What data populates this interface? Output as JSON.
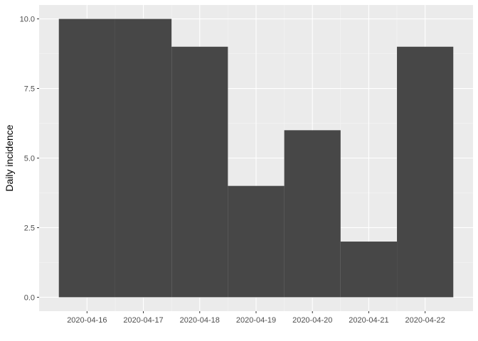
{
  "chart_data": {
    "type": "bar",
    "title": "",
    "xlabel": "",
    "ylabel": "Daily incidence",
    "categories": [
      "2020-04-16",
      "2020-04-17",
      "2020-04-18",
      "2020-04-19",
      "2020-04-20",
      "2020-04-21",
      "2020-04-22"
    ],
    "values": [
      10,
      10,
      9,
      4,
      6,
      2,
      9
    ],
    "ylim": [
      -0.5,
      10.5
    ],
    "yticks": [
      0.0,
      2.5,
      5.0,
      7.5,
      10.0
    ],
    "ytick_labels": [
      "0.0",
      "2.5",
      "5.0",
      "7.5",
      "10.0"
    ],
    "grid": true,
    "legend": "none",
    "bar_color": "#474747",
    "panel_color": "#ebebeb",
    "grid_major_color": "#ffffff",
    "grid_minor_color": "#f5f5f5"
  }
}
